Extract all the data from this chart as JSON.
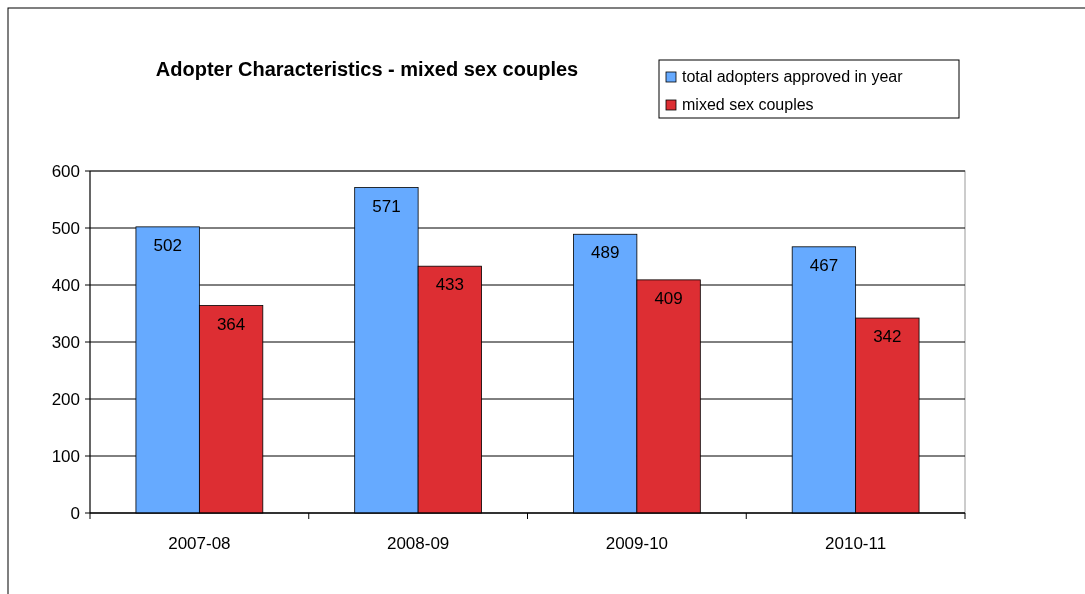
{
  "chart_data": {
    "type": "bar",
    "title": "Adopter Characteristics - mixed sex couples",
    "categories": [
      "2007-08",
      "2008-09",
      "2009-10",
      "2010-11"
    ],
    "series": [
      {
        "name": "total adopters approved in year",
        "color": "#66aaff",
        "values": [
          502,
          571,
          489,
          467
        ]
      },
      {
        "name": "mixed sex couples",
        "color": "#dd2e33",
        "values": [
          364,
          433,
          409,
          342
        ]
      }
    ],
    "ylim": [
      0,
      600
    ],
    "yticks": [
      0,
      100,
      200,
      300,
      400,
      500,
      600
    ],
    "grid": "y",
    "legend": "top right",
    "data_labels": true
  }
}
